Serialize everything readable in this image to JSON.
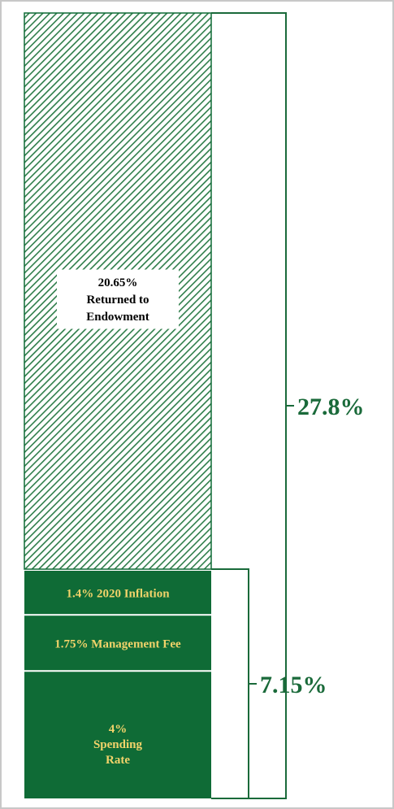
{
  "chart_data": {
    "type": "bar",
    "subtype": "stacked-single-column",
    "total": 27.8,
    "total_label": "27.8%",
    "bracket_labels": [
      {
        "label": "27.8%",
        "spans": "all-segments",
        "value": 27.8
      },
      {
        "label": "7.15%",
        "spans": "lower-three-segments",
        "value": 7.15
      }
    ],
    "segments": [
      {
        "name": "Spending Rate",
        "value": 4,
        "label_lines": [
          "4%",
          "Spending",
          "Rate"
        ],
        "fill": "solid"
      },
      {
        "name": "Management Fee",
        "value": 1.75,
        "label_lines": [
          "1.75% Management Fee"
        ],
        "fill": "solid"
      },
      {
        "name": "2020 Inflation",
        "value": 1.4,
        "label_lines": [
          "1.4% 2020 Inflation"
        ],
        "fill": "solid"
      },
      {
        "name": "Returned to Endowment",
        "value": 20.65,
        "label_lines": [
          "20.65%",
          "Returned to",
          "Endowment"
        ],
        "fill": "hatched"
      }
    ],
    "colors": {
      "segment": "#0f6b36",
      "hatch": "#2e7d4a",
      "segment_text": "#f2d36a",
      "bracket": "#1a6a3a",
      "bracket_text": "#1a6a3a",
      "label_box": "#ffffff",
      "label_box_text": "#000000"
    }
  }
}
